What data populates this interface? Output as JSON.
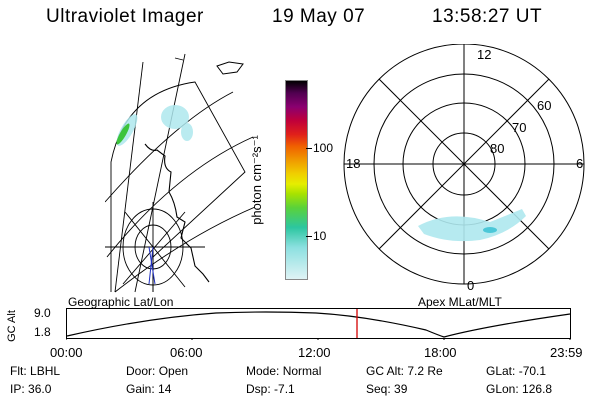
{
  "header": {
    "instrument": "Ultraviolet Imager",
    "date": "19 May 07",
    "time": "13:58:27 UT"
  },
  "colorbar": {
    "unit_label": "photon cm⁻²s⁻¹",
    "ticks": [
      {
        "label": "100"
      },
      {
        "label": "10"
      }
    ]
  },
  "polar": {
    "mlt_labels": {
      "top": "12",
      "left": "18",
      "right": "6",
      "bottom": "0"
    },
    "lat_labels": [
      "60",
      "70",
      "80"
    ]
  },
  "panels": {
    "left_title": "Geographic Lat/Lon",
    "right_title": "Apex MLat/MLT"
  },
  "altitude_plot": {
    "ylabel": "GC Alt",
    "y_ticks": [
      "9.0",
      "1.8"
    ],
    "x_ticks": [
      "00:00",
      "06:00",
      "12:00",
      "18:00",
      "23:59"
    ]
  },
  "status": {
    "row1": [
      {
        "key": "Flt:",
        "value": "LBHL"
      },
      {
        "key": "Door:",
        "value": "Open"
      },
      {
        "key": "Mode:",
        "value": "Normal"
      },
      {
        "key": "GC Alt:",
        "value": "7.2 Re"
      },
      {
        "key": "GLat:",
        "value": "-70.1"
      }
    ],
    "row2": [
      {
        "key": "IP:",
        "value": "36.0"
      },
      {
        "key": "Gain:",
        "value": "14"
      },
      {
        "key": "Dsp:",
        "value": "-7.1"
      },
      {
        "key": "Seq:",
        "value": "39"
      },
      {
        "key": "GLon:",
        "value": "126.8"
      }
    ]
  },
  "colors": {
    "marker": "#d40000",
    "aurora": "#aee8ee"
  }
}
